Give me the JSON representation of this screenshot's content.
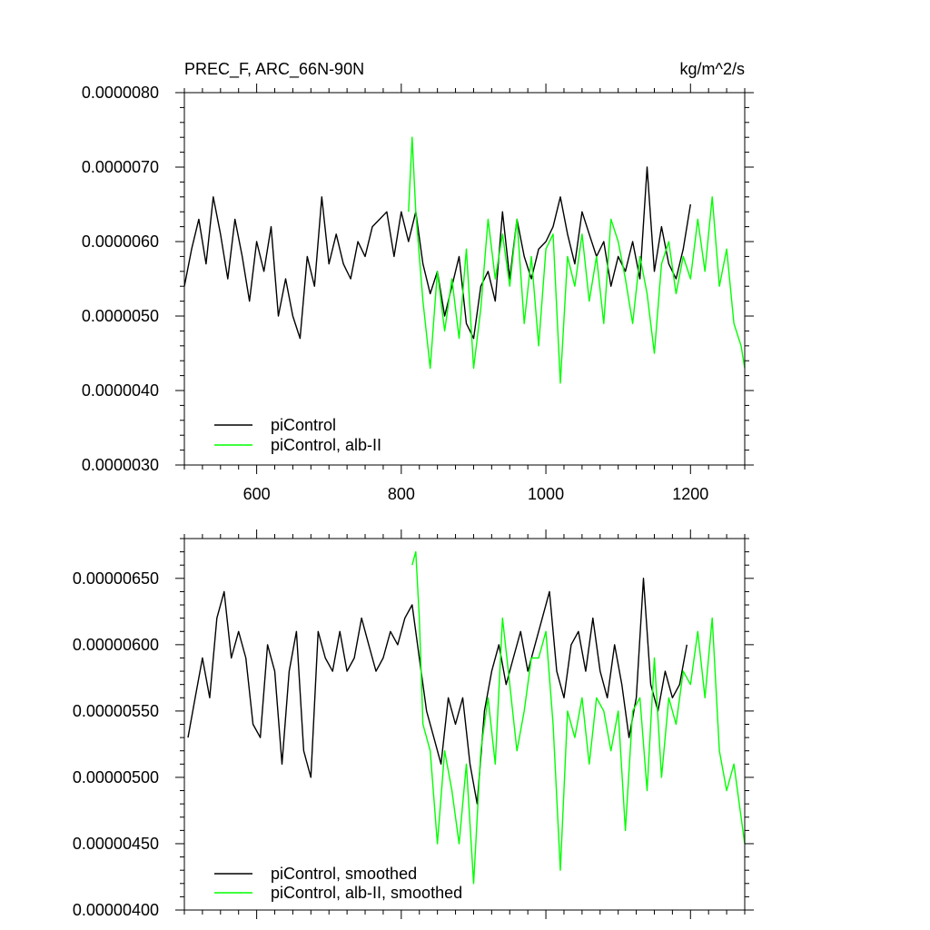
{
  "chart_data": [
    {
      "type": "line",
      "title": "PREC_F, ARC_66N-90N",
      "units": "kg/m^2/s",
      "xlim": [
        500,
        1275
      ],
      "ylim": [
        3e-06,
        8e-06
      ],
      "x_ticks": [
        600,
        800,
        1000,
        1200
      ],
      "x_tick_labels": [
        "600",
        "800",
        "1000",
        "1200"
      ],
      "y_ticks": [
        3e-06,
        4e-06,
        5e-06,
        6e-06,
        7e-06,
        8e-06
      ],
      "y_tick_labels": [
        "0.0000030",
        "0.0000040",
        "0.0000050",
        "0.0000060",
        "0.0000070",
        "0.0000080"
      ],
      "legend_position": "bottom-left",
      "series": [
        {
          "name": "piControl",
          "color": "#000000",
          "x": [
            500,
            510,
            520,
            530,
            540,
            550,
            560,
            570,
            580,
            590,
            600,
            610,
            620,
            630,
            640,
            650,
            660,
            670,
            680,
            690,
            700,
            710,
            720,
            730,
            740,
            750,
            760,
            770,
            780,
            790,
            800,
            810,
            820,
            830,
            840,
            850,
            860,
            870,
            880,
            890,
            900,
            910,
            920,
            930,
            940,
            950,
            960,
            970,
            980,
            990,
            1000,
            1010,
            1020,
            1030,
            1040,
            1050,
            1060,
            1070,
            1080,
            1090,
            1100,
            1110,
            1120,
            1130,
            1140,
            1150,
            1160,
            1170,
            1180,
            1190,
            1200
          ],
          "y": [
            5.4e-06,
            5.9e-06,
            6.3e-06,
            5.7e-06,
            6.6e-06,
            6.1e-06,
            5.5e-06,
            6.3e-06,
            5.8e-06,
            5.2e-06,
            6e-06,
            5.6e-06,
            6.2e-06,
            5e-06,
            5.5e-06,
            5e-06,
            4.7e-06,
            5.8e-06,
            5.4e-06,
            6.6e-06,
            5.7e-06,
            6.1e-06,
            5.7e-06,
            5.5e-06,
            6e-06,
            5.8e-06,
            6.2e-06,
            6.3e-06,
            6.4e-06,
            5.8e-06,
            6.4e-06,
            6e-06,
            6.4e-06,
            5.7e-06,
            5.3e-06,
            5.6e-06,
            5e-06,
            5.4e-06,
            5.8e-06,
            4.9e-06,
            4.7e-06,
            5.4e-06,
            5.6e-06,
            5.2e-06,
            6.4e-06,
            5.5e-06,
            6.3e-06,
            5.8e-06,
            5.5e-06,
            5.9e-06,
            6e-06,
            6.2e-06,
            6.6e-06,
            6.1e-06,
            5.7e-06,
            6.4e-06,
            6.1e-06,
            5.8e-06,
            6e-06,
            5.4e-06,
            5.8e-06,
            5.6e-06,
            6e-06,
            5.5e-06,
            7e-06,
            5.6e-06,
            6.2e-06,
            5.7e-06,
            5.5e-06,
            5.9e-06,
            6.5e-06
          ]
        },
        {
          "name": "piControl, alb-II",
          "color": "#00ff00",
          "x": [
            810,
            815,
            820,
            830,
            840,
            850,
            860,
            870,
            880,
            890,
            900,
            910,
            920,
            930,
            940,
            950,
            960,
            970,
            980,
            990,
            1000,
            1010,
            1020,
            1030,
            1040,
            1050,
            1060,
            1070,
            1080,
            1090,
            1100,
            1110,
            1120,
            1130,
            1140,
            1150,
            1160,
            1170,
            1180,
            1190,
            1200,
            1210,
            1220,
            1230,
            1240,
            1250,
            1260,
            1270,
            1275
          ],
          "y": [
            6.4e-06,
            7.4e-06,
            6.4e-06,
            5.2e-06,
            4.3e-06,
            5.6e-06,
            4.8e-06,
            5.5e-06,
            4.7e-06,
            5.9e-06,
            4.3e-06,
            5.1e-06,
            6.3e-06,
            5.5e-06,
            6.1e-06,
            5.4e-06,
            6.3e-06,
            4.9e-06,
            5.8e-06,
            4.6e-06,
            5.9e-06,
            6.1e-06,
            4.1e-06,
            5.8e-06,
            5.4e-06,
            6.1e-06,
            5.2e-06,
            5.8e-06,
            4.9e-06,
            6.3e-06,
            6e-06,
            5.5e-06,
            4.9e-06,
            5.8e-06,
            5.3e-06,
            4.5e-06,
            5.7e-06,
            6e-06,
            5.3e-06,
            5.8e-06,
            5.5e-06,
            6.3e-06,
            5.6e-06,
            6.6e-06,
            5.4e-06,
            5.9e-06,
            4.9e-06,
            4.6e-06,
            4.3e-06
          ]
        }
      ]
    },
    {
      "type": "line",
      "xlim": [
        500,
        1275
      ],
      "ylim": [
        4e-06,
        6.8e-06
      ],
      "x_ticks": [
        600,
        800,
        1000,
        1200
      ],
      "y_ticks": [
        4e-06,
        4.5e-06,
        5e-06,
        5.5e-06,
        6e-06,
        6.5e-06
      ],
      "y_tick_labels": [
        "0.00000400",
        "0.00000450",
        "0.00000500",
        "0.00000550",
        "0.00000600",
        "0.00000650"
      ],
      "legend_position": "bottom-left",
      "series": [
        {
          "name": "piControl, smoothed",
          "color": "#000000",
          "x": [
            505,
            515,
            525,
            535,
            545,
            555,
            565,
            575,
            585,
            595,
            605,
            615,
            625,
            635,
            645,
            655,
            665,
            675,
            685,
            695,
            705,
            715,
            725,
            735,
            745,
            755,
            765,
            775,
            785,
            795,
            805,
            815,
            825,
            835,
            845,
            855,
            865,
            875,
            885,
            895,
            905,
            915,
            925,
            935,
            945,
            955,
            965,
            975,
            985,
            995,
            1005,
            1015,
            1025,
            1035,
            1045,
            1055,
            1065,
            1075,
            1085,
            1095,
            1105,
            1115,
            1125,
            1135,
            1145,
            1155,
            1165,
            1175,
            1185,
            1195
          ],
          "y": [
            5.3e-06,
            5.6e-06,
            5.9e-06,
            5.6e-06,
            6.2e-06,
            6.4e-06,
            5.9e-06,
            6.1e-06,
            5.9e-06,
            5.4e-06,
            5.3e-06,
            6e-06,
            5.8e-06,
            5.1e-06,
            5.8e-06,
            6.1e-06,
            5.2e-06,
            5e-06,
            6.1e-06,
            5.9e-06,
            5.8e-06,
            6.1e-06,
            5.8e-06,
            5.9e-06,
            6.2e-06,
            6e-06,
            5.8e-06,
            5.9e-06,
            6.1e-06,
            6e-06,
            6.2e-06,
            6.3e-06,
            5.9e-06,
            5.5e-06,
            5.3e-06,
            5.1e-06,
            5.6e-06,
            5.4e-06,
            5.6e-06,
            5.1e-06,
            4.8e-06,
            5.5e-06,
            5.8e-06,
            6e-06,
            5.7e-06,
            5.9e-06,
            6.1e-06,
            5.8e-06,
            6e-06,
            6.2e-06,
            6.4e-06,
            5.8e-06,
            5.6e-06,
            6e-06,
            6.1e-06,
            5.8e-06,
            6.2e-06,
            5.8e-06,
            5.6e-06,
            6e-06,
            5.7e-06,
            5.3e-06,
            5.6e-06,
            6.5e-06,
            5.7e-06,
            5.5e-06,
            5.8e-06,
            5.6e-06,
            5.7e-06,
            6e-06
          ]
        },
        {
          "name": "piControl, alb-II, smoothed",
          "color": "#00ff00",
          "x": [
            815,
            820,
            825,
            830,
            840,
            850,
            860,
            870,
            880,
            890,
            900,
            910,
            920,
            930,
            940,
            950,
            960,
            970,
            980,
            990,
            1000,
            1010,
            1020,
            1030,
            1040,
            1050,
            1060,
            1070,
            1080,
            1090,
            1100,
            1110,
            1120,
            1130,
            1140,
            1150,
            1160,
            1170,
            1180,
            1190,
            1200,
            1210,
            1220,
            1230,
            1240,
            1250,
            1260,
            1270,
            1275
          ],
          "y": [
            6.6e-06,
            6.7e-06,
            6.2e-06,
            5.4e-06,
            5.2e-06,
            4.5e-06,
            5.2e-06,
            4.9e-06,
            4.5e-06,
            5.1e-06,
            4.2e-06,
            5.2e-06,
            5.6e-06,
            5.1e-06,
            6.2e-06,
            5.7e-06,
            5.2e-06,
            5.5e-06,
            5.9e-06,
            5.9e-06,
            6.1e-06,
            5.4e-06,
            4.3e-06,
            5.5e-06,
            5.3e-06,
            5.6e-06,
            5.1e-06,
            5.6e-06,
            5.5e-06,
            5.2e-06,
            5.5e-06,
            4.6e-06,
            5.5e-06,
            5.6e-06,
            4.9e-06,
            5.9e-06,
            5e-06,
            5.6e-06,
            5.4e-06,
            5.8e-06,
            5.7e-06,
            6.1e-06,
            5.6e-06,
            6.2e-06,
            5.2e-06,
            4.9e-06,
            5.1e-06,
            4.7e-06,
            4.5e-06
          ]
        }
      ]
    }
  ]
}
